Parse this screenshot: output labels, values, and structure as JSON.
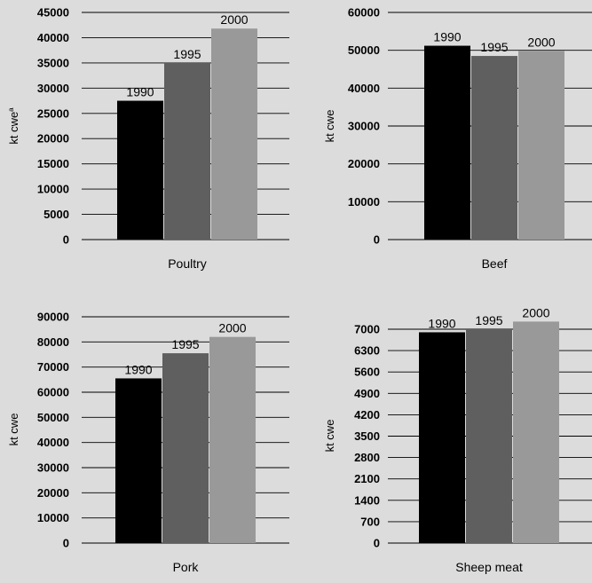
{
  "colors": {
    "background": "#dcdcdc",
    "1990": "#000000",
    "1995": "#5f5f5f",
    "2000": "#999999"
  },
  "chart_data": [
    {
      "type": "bar",
      "categories": [
        "1990",
        "1995",
        "2000"
      ],
      "values": [
        27500,
        35000,
        41800
      ],
      "xlabel": "Poultry",
      "ylabel": "kt cwe",
      "ylabel_superscript": "a",
      "ylim": [
        0,
        45000
      ],
      "yticks": [
        "0",
        "5000",
        "10000",
        "15000",
        "20000",
        "25000",
        "30000",
        "35000",
        "40000",
        "45000"
      ],
      "grid": true
    },
    {
      "type": "bar",
      "categories": [
        "1990",
        "1995",
        "2000"
      ],
      "values": [
        51200,
        48500,
        49800
      ],
      "xlabel": "Beef",
      "ylabel": "kt cwe",
      "ylim": [
        0,
        60000
      ],
      "yticks": [
        "0",
        "10000",
        "20000",
        "30000",
        "40000",
        "50000",
        "60000"
      ],
      "grid": true
    },
    {
      "type": "bar",
      "categories": [
        "1990",
        "1995",
        "2000"
      ],
      "values": [
        65500,
        75500,
        82000
      ],
      "xlabel": "Pork",
      "ylabel": "kt cwe",
      "ylim": [
        0,
        90000
      ],
      "yticks": [
        "0",
        "10000",
        "20000",
        "30000",
        "40000",
        "50000",
        "60000",
        "70000",
        "80000",
        "90000"
      ],
      "grid": true
    },
    {
      "type": "bar",
      "categories": [
        "1990",
        "1995",
        "2000"
      ],
      "values": [
        6900,
        7000,
        7250
      ],
      "xlabel": "Sheep meat",
      "ylabel": "kt cwe",
      "ylim": [
        0,
        7000
      ],
      "yticks": [
        "0",
        "700",
        "1400",
        "2100",
        "2800",
        "3500",
        "4200",
        "4900",
        "5600",
        "6300",
        "7000"
      ],
      "grid": true
    }
  ]
}
